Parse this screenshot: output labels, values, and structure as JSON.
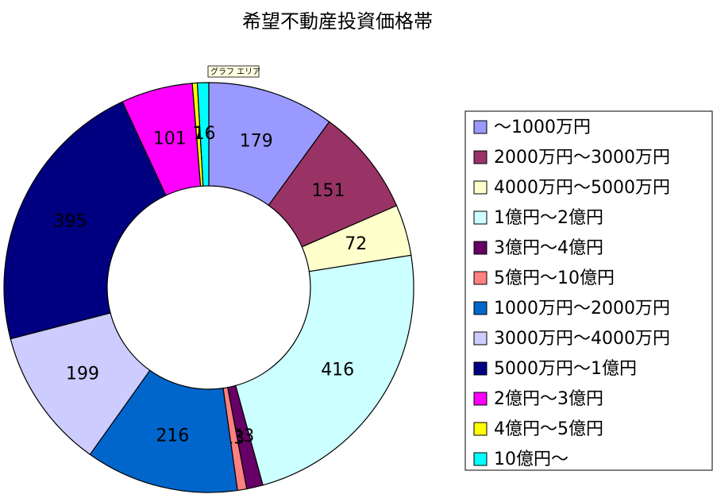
{
  "chart_data": {
    "type": "donut",
    "title": "希望不動産投資価格帯",
    "tooltip": "グラフ エリア",
    "categories": [
      "～1000万円",
      "2000万円～3000万円",
      "4000万円～5000万円",
      "1億円～2億円",
      "3億円～4億円",
      "5億円～10億円",
      "1000万円～2000万円",
      "3000万円～4000万円",
      "5000万円～1億円",
      "2億円～3億円",
      "4億円～5億円",
      "10億円～"
    ],
    "values": [
      179,
      151,
      72,
      416,
      23,
      13,
      216,
      199,
      395,
      101,
      7,
      16
    ],
    "colors": [
      "#9999ff",
      "#993366",
      "#ffffcc",
      "#ccffff",
      "#660066",
      "#ff8080",
      "#0066cc",
      "#ccccff",
      "#000080",
      "#ff00ff",
      "#ffff00",
      "#00ffff"
    ],
    "legend": "right"
  }
}
